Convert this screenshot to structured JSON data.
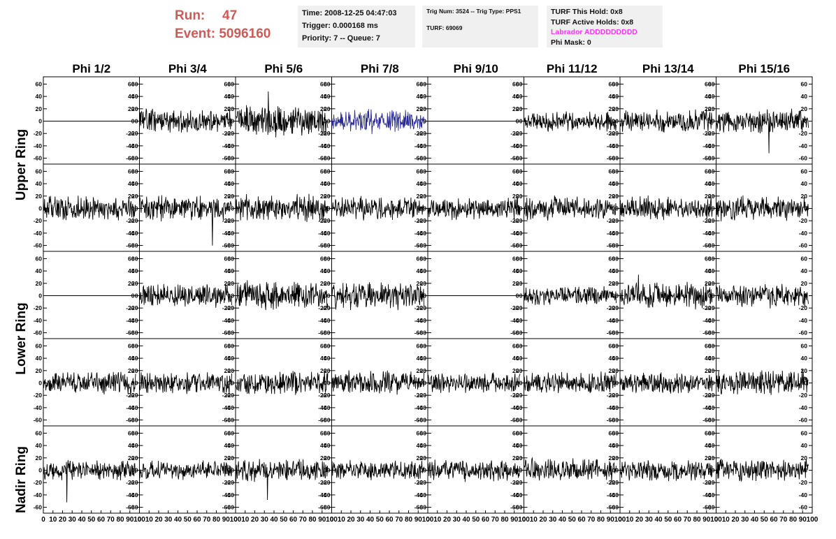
{
  "header": {
    "run_label": "Run:",
    "run_value": "47",
    "event_label": "Event:",
    "event_value": "5096160",
    "time_line": "Time: 2008-12-25 04:47:03",
    "trigger_line": "Trigger: 0.000168 ms",
    "priority_line": "Priority: 7 -- Queue: 7",
    "trig_line": "Trig Num: 3524 -- Trig Type: PPS1",
    "turf_line": "TURF: 69069",
    "turf_hold_line": "TURF This Hold: 0x8",
    "turf_active_line": "TURF Active Holds: 0x8",
    "labrador_line": "Labrador ADDDDDDDDD",
    "phimask_line": "Phi Mask: 0"
  },
  "chart_data": {
    "type": "line",
    "columns": [
      "Phi 1/2",
      "Phi 3/4",
      "Phi 5/6",
      "Phi 7/8",
      "Phi 9/10",
      "Phi 11/12",
      "Phi 13/14",
      "Phi 15/16"
    ],
    "row_labels": [
      "Upper Ring",
      "Lower Ring",
      "Nadir Ring"
    ],
    "ylim": [
      -65,
      65
    ],
    "yticks": [
      -60,
      -40,
      -20,
      0,
      20,
      40,
      60
    ],
    "xlim": [
      0,
      100
    ],
    "xticks": [
      0,
      10,
      20,
      30,
      40,
      50,
      60,
      70,
      80,
      90,
      100
    ],
    "trace_x_range": [
      0,
      96
    ],
    "colors": {
      "trace": "#000000",
      "highlight": "#2a2a9a"
    },
    "panels": [
      [
        {
          "flat": true,
          "amp": 0
        },
        {
          "amp": 14,
          "seed": 11
        },
        {
          "amp": 18,
          "seed": 12,
          "spike": 48
        },
        {
          "amp": 16,
          "seed": 13,
          "color": "highlight",
          "envelope": true
        },
        {
          "flat": true,
          "amp": 0
        },
        {
          "amp": 12,
          "seed": 15
        },
        {
          "amp": 14,
          "seed": 16
        },
        {
          "amp": 15,
          "seed": 17,
          "spike": -52
        }
      ],
      [
        {
          "amp": 16,
          "seed": 21
        },
        {
          "amp": 15,
          "seed": 22,
          "spike": -60
        },
        {
          "amp": 16,
          "seed": 23
        },
        {
          "amp": 14,
          "seed": 24
        },
        {
          "amp": 13,
          "seed": 25
        },
        {
          "amp": 14,
          "seed": 26
        },
        {
          "amp": 14,
          "seed": 27
        },
        {
          "amp": 15,
          "seed": 28
        }
      ],
      [
        {
          "flat": true,
          "amp": 0
        },
        {
          "amp": 14,
          "seed": 31
        },
        {
          "amp": 17,
          "seed": 32
        },
        {
          "amp": 16,
          "seed": 33
        },
        {
          "flat": true,
          "amp": 0
        },
        {
          "amp": 12,
          "seed": 35
        },
        {
          "amp": 15,
          "seed": 36,
          "spike": 34
        },
        {
          "amp": 14,
          "seed": 37
        }
      ],
      [
        {
          "amp": 13,
          "seed": 41
        },
        {
          "amp": 13,
          "seed": 42
        },
        {
          "amp": 14,
          "seed": 43
        },
        {
          "amp": 14,
          "seed": 44
        },
        {
          "amp": 12,
          "seed": 45
        },
        {
          "amp": 13,
          "seed": 46
        },
        {
          "amp": 12,
          "seed": 47
        },
        {
          "amp": 15,
          "seed": 48
        }
      ],
      [
        {
          "amp": 12,
          "seed": 51,
          "spike": -52
        },
        {
          "amp": 11,
          "seed": 52
        },
        {
          "amp": 13,
          "seed": 53,
          "spike": -48
        },
        {
          "amp": 12,
          "seed": 54
        },
        {
          "amp": 13,
          "seed": 55
        },
        {
          "amp": 14,
          "seed": 56
        },
        {
          "amp": 13,
          "seed": 57
        },
        {
          "amp": 13,
          "seed": 58
        }
      ]
    ]
  }
}
